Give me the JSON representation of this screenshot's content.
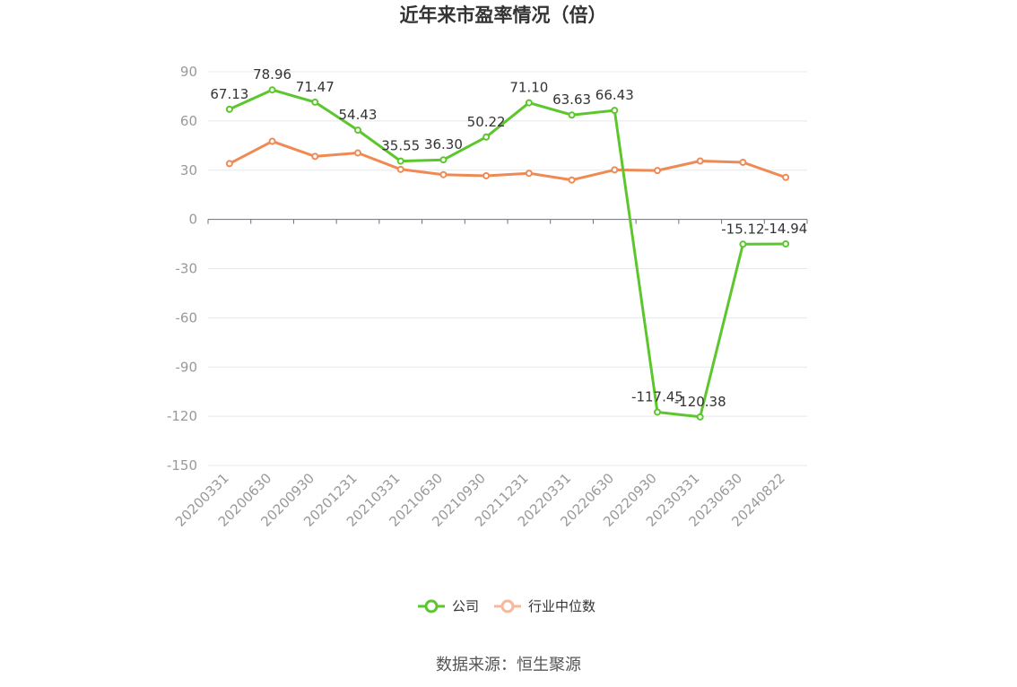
{
  "title": "近年来市盈率情况（倍）",
  "source": "数据来源：恒生聚源",
  "chart_data": {
    "type": "line",
    "title": "近年来市盈率情况（倍）",
    "categories": [
      "20200331",
      "20200630",
      "20200930",
      "20201231",
      "20210331",
      "20210630",
      "20210930",
      "20211231",
      "20220331",
      "20220630",
      "20220930",
      "20230331",
      "20230630",
      "20240822"
    ],
    "yticks": [
      "90",
      "60",
      "30",
      "0",
      "-30",
      "-60",
      "-90",
      "-120",
      "-150"
    ],
    "ylim": [
      -150,
      90
    ],
    "grid": true,
    "legend_position": "bottom",
    "series": [
      {
        "name": "公司",
        "color": "#5cc72c",
        "values": [
          67.13,
          78.96,
          71.47,
          54.43,
          35.55,
          36.3,
          50.22,
          71.1,
          63.63,
          66.43,
          -117.45,
          -120.38,
          -15.12,
          -14.94
        ],
        "labels": [
          "67.13",
          "78.96",
          "71.47",
          "54.43",
          "35.55",
          "36.30",
          "50.22",
          "71.10",
          "63.63",
          "66.43",
          "-117.45",
          "-120.38",
          "-15.12",
          "-14.94"
        ]
      },
      {
        "name": "行业中位数",
        "color": "#f08a55",
        "values": [
          34.0,
          47.6,
          38.4,
          40.5,
          30.5,
          27.3,
          26.6,
          28.1,
          24.0,
          30.2,
          29.8,
          35.6,
          34.8,
          25.6
        ]
      }
    ]
  }
}
